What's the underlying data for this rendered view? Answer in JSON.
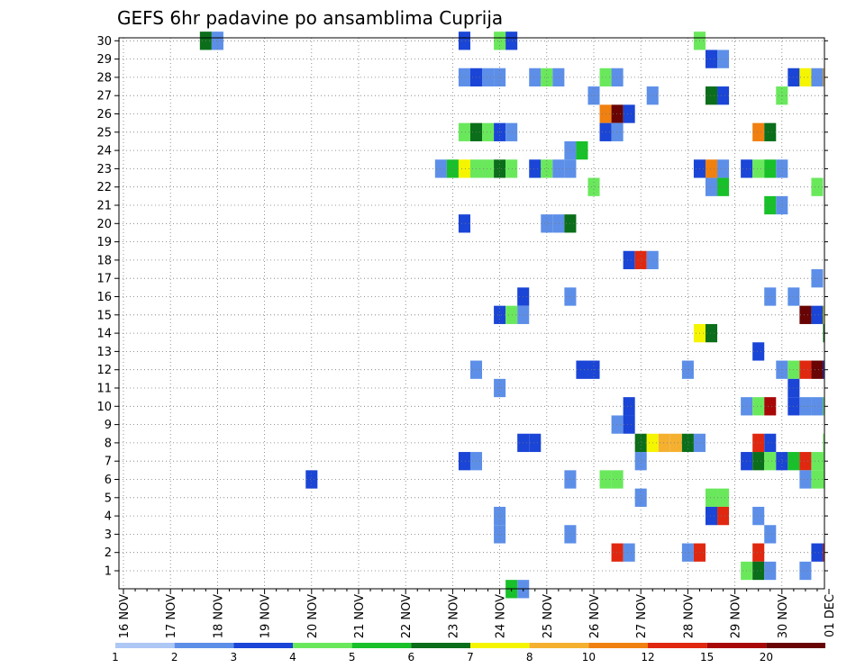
{
  "chart_data": {
    "type": "heatmap",
    "title": "GEFS 6hr padavine po ansamblima Cuprija",
    "x_tick_labels": [
      "16 NOV",
      "17 NOV",
      "18 NOV",
      "19 NOV",
      "20 NOV",
      "21 NOV",
      "22 NOV",
      "23 NOV",
      "24 NOV",
      "25 NOV",
      "26 NOV",
      "27 NOV",
      "28 NOV",
      "29 NOV",
      "30 NOV",
      "01 DEC"
    ],
    "y_tick_labels": [
      1,
      2,
      3,
      4,
      5,
      6,
      7,
      8,
      9,
      10,
      11,
      12,
      13,
      14,
      15,
      16,
      17,
      18,
      19,
      20,
      21,
      22,
      23,
      24,
      25,
      26,
      27,
      28,
      29,
      30
    ],
    "x_range": [
      0,
      15
    ],
    "y_range": [
      0,
      30.5
    ],
    "grid": true,
    "legend_placement": "bottom",
    "legend": {
      "labels": [
        "1",
        "2",
        "3",
        "4",
        "5",
        "6",
        "7",
        "8",
        "10",
        "12",
        "15",
        "20"
      ],
      "colors": [
        "#aec8f5",
        "#5d8fe8",
        "#1a45d6",
        "#6ae85c",
        "#18c02a",
        "#0b6e1a",
        "#f5f500",
        "#f5b030",
        "#f08010",
        "#e02810",
        "#a80808",
        "#680404"
      ]
    },
    "cells": [
      [
        1.75,
        30,
        5
      ],
      [
        2,
        30,
        1
      ],
      [
        7.25,
        30,
        2
      ],
      [
        8,
        30,
        3
      ],
      [
        8.25,
        30,
        2
      ],
      [
        12.25,
        30,
        3
      ],
      [
        12.5,
        29,
        2
      ],
      [
        12.75,
        29,
        1
      ],
      [
        7.25,
        28,
        1
      ],
      [
        7.5,
        28,
        2
      ],
      [
        7.75,
        28,
        1
      ],
      [
        8,
        28,
        1
      ],
      [
        8.75,
        28,
        1
      ],
      [
        9,
        28,
        3
      ],
      [
        9.25,
        28,
        1
      ],
      [
        10.25,
        28,
        3
      ],
      [
        10.5,
        28,
        1
      ],
      [
        14.25,
        28,
        2
      ],
      [
        14.5,
        28,
        6
      ],
      [
        14.75,
        28,
        1
      ],
      [
        15,
        28,
        7
      ],
      [
        10,
        27,
        1
      ],
      [
        11.25,
        27,
        1
      ],
      [
        12.5,
        27,
        5
      ],
      [
        12.75,
        27,
        2
      ],
      [
        14,
        27,
        3
      ],
      [
        10.25,
        26,
        8
      ],
      [
        10.5,
        26,
        11
      ],
      [
        10.75,
        26,
        2
      ],
      [
        7.25,
        25,
        3
      ],
      [
        7.5,
        25,
        5
      ],
      [
        7.75,
        25,
        3
      ],
      [
        8,
        25,
        2
      ],
      [
        8.25,
        25,
        1
      ],
      [
        10.25,
        25,
        2
      ],
      [
        10.5,
        25,
        1
      ],
      [
        13.5,
        25,
        8
      ],
      [
        13.75,
        25,
        5
      ],
      [
        9.5,
        24,
        1
      ],
      [
        9.75,
        24,
        4
      ],
      [
        6.75,
        23,
        1
      ],
      [
        7,
        23,
        4
      ],
      [
        7.25,
        23,
        6
      ],
      [
        7.5,
        23,
        3
      ],
      [
        7.75,
        23,
        3
      ],
      [
        8,
        23,
        5
      ],
      [
        8.25,
        23,
        3
      ],
      [
        8.75,
        23,
        2
      ],
      [
        9,
        23,
        3
      ],
      [
        9.25,
        23,
        1
      ],
      [
        9.5,
        23,
        1
      ],
      [
        12.25,
        23,
        2
      ],
      [
        12.5,
        23,
        8
      ],
      [
        12.75,
        23,
        1
      ],
      [
        13.25,
        23,
        2
      ],
      [
        13.5,
        23,
        3
      ],
      [
        13.75,
        23,
        4
      ],
      [
        14,
        23,
        1
      ],
      [
        10,
        22,
        3
      ],
      [
        12.5,
        22,
        1
      ],
      [
        12.75,
        22,
        4
      ],
      [
        14.75,
        22,
        3
      ],
      [
        13.75,
        21,
        4
      ],
      [
        14,
        21,
        1
      ],
      [
        7.25,
        20,
        2
      ],
      [
        9,
        20,
        1
      ],
      [
        9.25,
        20,
        1
      ],
      [
        9.5,
        20,
        5
      ],
      [
        10.75,
        18,
        2
      ],
      [
        11,
        18,
        9
      ],
      [
        11.25,
        18,
        1
      ],
      [
        14.75,
        17,
        1
      ],
      [
        8.5,
        16,
        2
      ],
      [
        9.5,
        16,
        1
      ],
      [
        13.75,
        16,
        1
      ],
      [
        14.25,
        16,
        1
      ],
      [
        8,
        15,
        2
      ],
      [
        8.25,
        15,
        3
      ],
      [
        8.5,
        15,
        1
      ],
      [
        14.5,
        15,
        11
      ],
      [
        14.75,
        15,
        2
      ],
      [
        15,
        15,
        6
      ],
      [
        12.25,
        14,
        6
      ],
      [
        12.5,
        14,
        5
      ],
      [
        15,
        14,
        5
      ],
      [
        13.5,
        13,
        2
      ],
      [
        7.5,
        12,
        1
      ],
      [
        9.75,
        12,
        2
      ],
      [
        10,
        12,
        2
      ],
      [
        12,
        12,
        1
      ],
      [
        14,
        12,
        1
      ],
      [
        14.25,
        12,
        3
      ],
      [
        14.5,
        12,
        9
      ],
      [
        14.75,
        12,
        11
      ],
      [
        15,
        12,
        2
      ],
      [
        8,
        11,
        1
      ],
      [
        14.25,
        11,
        2
      ],
      [
        10.75,
        10,
        2
      ],
      [
        13.25,
        10,
        1
      ],
      [
        13.5,
        10,
        3
      ],
      [
        13.75,
        10,
        10
      ],
      [
        14.25,
        10,
        2
      ],
      [
        14.5,
        10,
        1
      ],
      [
        14.75,
        10,
        1
      ],
      [
        15,
        10,
        3
      ],
      [
        10.5,
        9,
        1
      ],
      [
        10.75,
        9,
        2
      ],
      [
        8.5,
        8,
        2
      ],
      [
        8.75,
        8,
        2
      ],
      [
        11,
        8,
        5
      ],
      [
        11.25,
        8,
        6
      ],
      [
        11.5,
        8,
        7
      ],
      [
        11.75,
        8,
        7
      ],
      [
        12,
        8,
        5
      ],
      [
        12.25,
        8,
        1
      ],
      [
        13.5,
        8,
        9
      ],
      [
        13.75,
        8,
        2
      ],
      [
        15,
        8,
        3
      ],
      [
        7.25,
        7,
        2
      ],
      [
        7.5,
        7,
        1
      ],
      [
        11,
        7,
        1
      ],
      [
        13.25,
        7,
        2
      ],
      [
        13.5,
        7,
        5
      ],
      [
        13.75,
        7,
        3
      ],
      [
        14,
        7,
        2
      ],
      [
        14.25,
        7,
        4
      ],
      [
        14.5,
        7,
        9
      ],
      [
        14.75,
        7,
        3
      ],
      [
        15,
        7,
        3
      ],
      [
        4,
        6,
        2
      ],
      [
        9.5,
        6,
        1
      ],
      [
        10.25,
        6,
        3
      ],
      [
        10.5,
        6,
        3
      ],
      [
        14.5,
        6,
        1
      ],
      [
        14.75,
        6,
        3
      ],
      [
        15,
        6,
        3
      ],
      [
        11,
        5,
        1
      ],
      [
        12.5,
        5,
        3
      ],
      [
        12.75,
        5,
        3
      ],
      [
        8,
        4,
        1
      ],
      [
        12.5,
        4,
        2
      ],
      [
        12.75,
        4,
        9
      ],
      [
        13.5,
        4,
        1
      ],
      [
        8,
        3,
        1
      ],
      [
        9.5,
        3,
        1
      ],
      [
        13.75,
        3,
        1
      ],
      [
        10.5,
        2,
        9
      ],
      [
        10.75,
        2,
        1
      ],
      [
        12,
        2,
        1
      ],
      [
        12.25,
        2,
        9
      ],
      [
        13.5,
        2,
        9
      ],
      [
        14.75,
        2,
        2
      ],
      [
        15,
        2,
        9
      ],
      [
        13.25,
        1,
        3
      ],
      [
        13.5,
        1,
        5
      ],
      [
        13.75,
        1,
        1
      ],
      [
        14.5,
        1,
        1
      ],
      [
        8.25,
        0,
        4
      ],
      [
        8.5,
        0,
        1
      ]
    ]
  }
}
